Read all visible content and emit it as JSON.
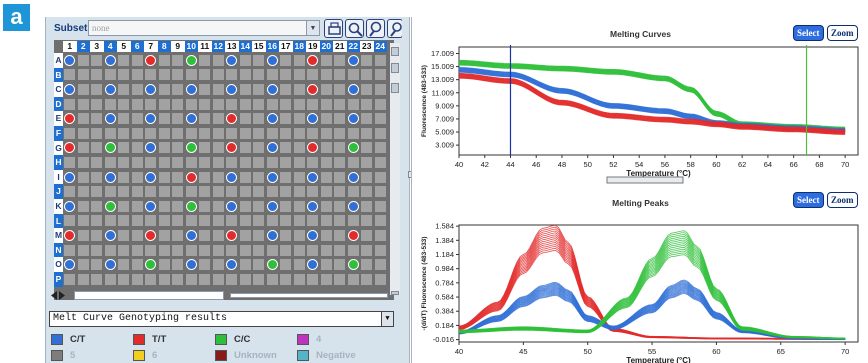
{
  "badge": "a",
  "toolbar": {
    "subset_label": "Subset:",
    "subset_value": "none",
    "icons": [
      "print-icon",
      "zoom-icon",
      "find-icon",
      "find-next-icon"
    ]
  },
  "plate": {
    "columns": [
      "1",
      "2",
      "3",
      "4",
      "5",
      "6",
      "7",
      "8",
      "9",
      "10",
      "11",
      "12",
      "13",
      "14",
      "15",
      "16",
      "17",
      "18",
      "19",
      "20",
      "21",
      "22",
      "23",
      "24"
    ],
    "rows": [
      "A",
      "B",
      "C",
      "D",
      "E",
      "F",
      "G",
      "H",
      "I",
      "J",
      "K",
      "L",
      "M",
      "N",
      "O",
      "P"
    ],
    "well_colors": {
      "B": "#2f6fd6",
      "R": "#e32b2b",
      "G": "#2fbf3a"
    },
    "wells": [
      "B.B.R.G.B.B.R.B",
      "",
      "B.B.B.B.B.B.R.B",
      "",
      "R.B.B.B.R.B.B.B",
      "",
      "R.G.B.G.R.B.R.G",
      "",
      "B.B.B.R.B.B.B.B",
      "",
      "B.G.B.G.B.B.B.B",
      "",
      "R.B.R.B.R.B.B.R",
      "",
      "B.B.G.B.B.G.B.G",
      ""
    ]
  },
  "results": {
    "selected": "Melt Curve Genotyping results"
  },
  "legend": {
    "items": [
      {
        "label": "C/T",
        "color": "#2f6fd6",
        "dim": false
      },
      {
        "label": "T/T",
        "color": "#e32b2b",
        "dim": false
      },
      {
        "label": "C/C",
        "color": "#2fbf3a",
        "dim": false
      },
      {
        "label": "4",
        "color": "#c033c0",
        "dim": true
      },
      {
        "label": "5",
        "color": "#7d7d7d",
        "dim": true
      },
      {
        "label": "6",
        "color": "#f2cf1f",
        "dim": true
      },
      {
        "label": "Unknown",
        "color": "#8b1b1b",
        "dim": true
      },
      {
        "label": "Negative",
        "color": "#54b4c8",
        "dim": true
      }
    ]
  },
  "charts": {
    "select_label": "Select",
    "zoom_label": "Zoom",
    "curves_title": "Melting Curves",
    "peaks_title": "Melting Peaks"
  },
  "chart_data": [
    {
      "type": "line",
      "title": "Melting Curves",
      "xlabel": "Temperature (°C)",
      "ylabel": "Fluorescence (483-533)",
      "xlim": [
        40,
        71
      ],
      "ylim": [
        1.5,
        18
      ],
      "xticks": [
        40,
        42,
        44,
        46,
        48,
        50,
        52,
        54,
        56,
        58,
        60,
        62,
        64,
        66,
        68,
        70
      ],
      "yticks": [
        "3.009",
        "5.009",
        "7.009",
        "9.009",
        "11.009",
        "13.009",
        "15.009",
        "17.009"
      ],
      "cursor_lines": [
        44,
        67
      ],
      "series": [
        {
          "color": "#2fbf3a",
          "x": [
            40,
            44,
            48,
            52,
            56,
            58,
            60,
            62,
            66,
            70
          ],
          "y": [
            15.6,
            15.1,
            14.7,
            14.2,
            13.2,
            11.5,
            7.8,
            6.2,
            5.8,
            5.4
          ]
        },
        {
          "color": "#2f6fd6",
          "x": [
            40,
            44,
            48,
            52,
            56,
            58,
            60,
            62,
            66,
            70
          ],
          "y": [
            14.5,
            13.8,
            11.3,
            9.0,
            8.2,
            7.4,
            6.4,
            6.0,
            5.6,
            5.2
          ]
        },
        {
          "color": "#e32b2b",
          "x": [
            40,
            44,
            48,
            52,
            56,
            58,
            60,
            62,
            66,
            70
          ],
          "y": [
            13.6,
            12.8,
            9.5,
            7.5,
            6.9,
            6.6,
            6.2,
            5.8,
            5.4,
            5.0
          ]
        }
      ]
    },
    {
      "type": "line",
      "title": "Melting Peaks",
      "xlabel": "Temperature (°C)",
      "ylabel": "-(d/dT) Fluorescence (483-533)",
      "xlim": [
        40,
        71
      ],
      "ylim": [
        -0.05,
        1.6
      ],
      "xticks": [
        40,
        45,
        50,
        55,
        60,
        65,
        70
      ],
      "yticks": [
        "-0.016",
        "0.184",
        "0.384",
        "0.584",
        "0.784",
        "0.984",
        "1.184",
        "1.384",
        "1.584"
      ],
      "series": [
        {
          "color": "#e32b2b",
          "x": [
            40,
            43,
            45,
            46.5,
            47.5,
            48.5,
            50,
            52,
            55,
            60,
            70
          ],
          "y": [
            0.15,
            0.45,
            1.05,
            1.38,
            1.42,
            1.2,
            0.52,
            0.12,
            0.02,
            0.0,
            -0.01
          ]
        },
        {
          "color": "#2f6fd6",
          "x": [
            40,
            43,
            45,
            46.5,
            47.5,
            48.5,
            50,
            52,
            55,
            56.5,
            57.5,
            58.5,
            60,
            62,
            66,
            70
          ],
          "y": [
            0.08,
            0.28,
            0.52,
            0.66,
            0.7,
            0.6,
            0.28,
            0.15,
            0.42,
            0.66,
            0.73,
            0.62,
            0.32,
            0.1,
            0.0,
            -0.01
          ]
        },
        {
          "color": "#2fbf3a",
          "x": [
            40,
            45,
            50,
            53,
            55,
            56.5,
            57.5,
            58.5,
            60,
            62,
            66,
            70
          ],
          "y": [
            0.1,
            0.14,
            0.1,
            0.5,
            1.0,
            1.32,
            1.35,
            1.15,
            0.62,
            0.14,
            0.02,
            0.0
          ]
        }
      ]
    }
  ]
}
